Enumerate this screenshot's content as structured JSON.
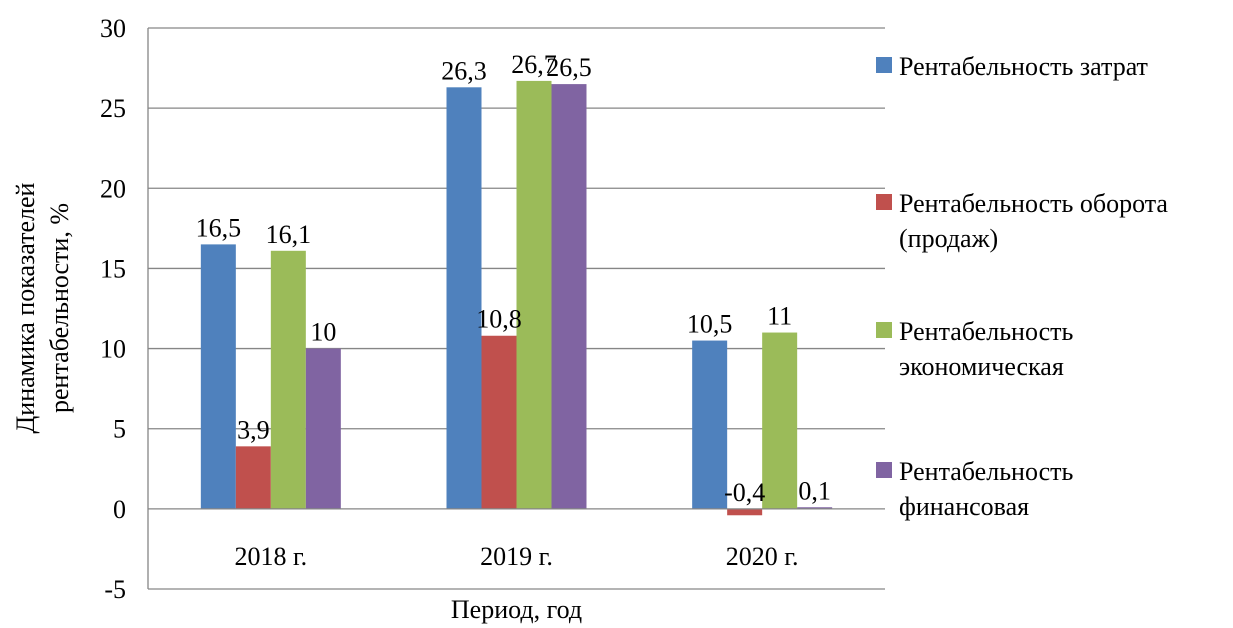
{
  "chart_data": {
    "type": "bar",
    "title": "",
    "xlabel": "Период, год",
    "ylabel": [
      "Динамика показателей",
      "рентабельности, %"
    ],
    "categories": [
      "2018 г.",
      "2019 г.",
      "2020 г."
    ],
    "ylim": [
      -5,
      30
    ],
    "yticks": [
      -5,
      0,
      5,
      10,
      15,
      20,
      25,
      30
    ],
    "ytick_labels": [
      "-5",
      "0",
      "5",
      "10",
      "15",
      "20",
      "25",
      "30"
    ],
    "grid": true,
    "legend_position": "right",
    "series": [
      {
        "name": "Рентабельность затрат",
        "legend_lines": [
          "Рентабельность затрат"
        ],
        "color": "#4F81BD",
        "values": [
          16.5,
          26.3,
          10.5
        ],
        "labels": [
          "16,5",
          "26,3",
          "10,5"
        ]
      },
      {
        "name": "Рентабельность оборота (продаж)",
        "legend_lines": [
          "Рентабельность оборота",
          "(продаж)"
        ],
        "color": "#C0504D",
        "values": [
          3.9,
          10.8,
          -0.4
        ],
        "labels": [
          "3,9",
          "10,8",
          "-0,4"
        ]
      },
      {
        "name": "Рентабельность экономическая",
        "legend_lines": [
          "Рентабельность",
          "экономическая"
        ],
        "color": "#9BBB59",
        "values": [
          16.1,
          26.7,
          11
        ],
        "labels": [
          "16,1",
          "26,7",
          "11"
        ]
      },
      {
        "name": "Рентабельность финансовая",
        "legend_lines": [
          "Рентабельность",
          "финансовая"
        ],
        "color": "#8064A2",
        "values": [
          10,
          26.5,
          0.1
        ],
        "labels": [
          "10",
          "26,5",
          "0,1"
        ]
      }
    ]
  }
}
